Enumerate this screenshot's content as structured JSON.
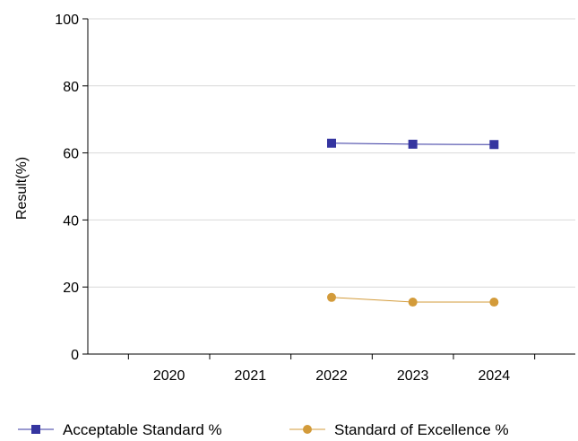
{
  "chart_data": {
    "type": "line",
    "title": "",
    "xlabel": "",
    "ylabel": "Result(%)",
    "categories": [
      "2020",
      "2021",
      "2022",
      "2023",
      "2024"
    ],
    "ylim": [
      0,
      100
    ],
    "yticks": [
      0,
      20,
      40,
      60,
      80,
      100
    ],
    "grid": "horizontal",
    "legend_position": "bottom",
    "series": [
      {
        "name": "Acceptable Standard %",
        "values": [
          null,
          null,
          62.9,
          62.6,
          62.5
        ],
        "color": "#3535a0",
        "marker": "square"
      },
      {
        "name": "Standard of Excellence %",
        "values": [
          null,
          null,
          16.9,
          15.5,
          15.5
        ],
        "color": "#d39b3a",
        "marker": "circle"
      }
    ]
  }
}
